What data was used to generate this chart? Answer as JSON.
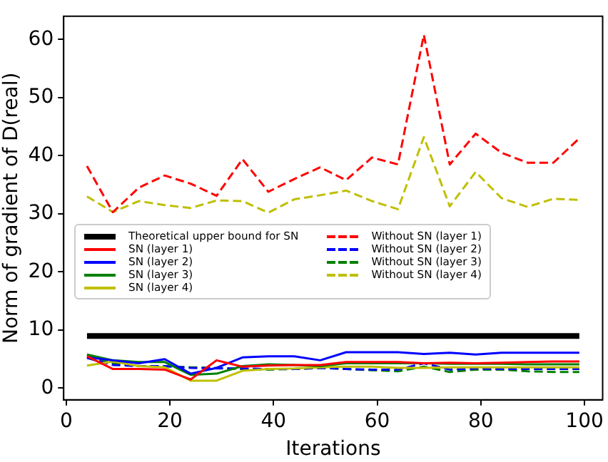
{
  "chart_data": {
    "type": "line",
    "xlabel": "Iterations",
    "ylabel": "Norm of gradient of D(real)",
    "x": [
      4,
      9,
      14,
      19,
      24,
      29,
      34,
      39,
      44,
      49,
      54,
      59,
      64,
      69,
      74,
      79,
      84,
      89,
      94,
      99
    ],
    "xlim": [
      -0.5,
      103.5
    ],
    "xticks": [
      0,
      20,
      40,
      60,
      80,
      100
    ],
    "ylim": [
      -2,
      64
    ],
    "yticks": [
      0,
      10,
      20,
      30,
      40,
      50,
      60
    ],
    "grid": false,
    "legend": "center left",
    "marker": "none",
    "series": [
      {
        "name": "Theoretical upper bound for SN",
        "color": "#000000",
        "line_style": "solid",
        "x": [
          4,
          99
        ],
        "values": [
          9,
          9
        ]
      },
      {
        "name": "SN (layer 1)",
        "color": "#ff0000",
        "line_style": "solid",
        "values": [
          5.5,
          3.3,
          3.3,
          3.2,
          1.5,
          4.8,
          3.7,
          3.9,
          4,
          4,
          4.5,
          4.5,
          4.5,
          4.3,
          4.4,
          4.3,
          4.4,
          4.5,
          4.6,
          4.6
        ]
      },
      {
        "name": "SN (layer 2)",
        "color": "#0000ff",
        "line_style": "solid",
        "values": [
          5.3,
          4.8,
          4.3,
          5,
          2.5,
          3.5,
          5.3,
          5.5,
          5.5,
          4.8,
          6.2,
          6.2,
          6.2,
          5.9,
          6.1,
          5.8,
          6.1,
          6.1,
          6.1,
          6.1
        ]
      },
      {
        "name": "SN (layer 3)",
        "color": "#008000",
        "line_style": "solid",
        "values": [
          5.8,
          4.8,
          4.5,
          4.5,
          2.3,
          2.5,
          3.8,
          4.1,
          4,
          3.8,
          4.3,
          4.3,
          4.3,
          4.3,
          4.2,
          4.2,
          4.2,
          4.1,
          4.1,
          4.1
        ]
      },
      {
        "name": "SN (layer 4)",
        "color": "#bfbf00",
        "line_style": "solid",
        "values": [
          3.9,
          4.6,
          3.8,
          3.6,
          1.3,
          1.3,
          3,
          3.3,
          3.4,
          3.6,
          3.7,
          3.7,
          3.5,
          3.5,
          3.6,
          3.6,
          3.6,
          3.6,
          3.6,
          3.6
        ]
      },
      {
        "name": "Without SN (layer 1)",
        "color": "#ff0000",
        "line_style": "dashed",
        "values": [
          38.2,
          30.3,
          34.5,
          36.6,
          35.2,
          33.1,
          39.4,
          33.8,
          36,
          38,
          35.8,
          39.7,
          38.5,
          60.8,
          38.5,
          43.8,
          40.5,
          38.8,
          38.8,
          43
        ]
      },
      {
        "name": "Without SN (layer 2)",
        "color": "#0000ff",
        "line_style": "dashed",
        "values": [
          5.2,
          4,
          3.8,
          3.8,
          3.5,
          3.4,
          3.4,
          3.3,
          3.3,
          3.5,
          3.3,
          3.2,
          3.2,
          4.3,
          3.2,
          3.4,
          3.3,
          3.3,
          3.3,
          3.3
        ]
      },
      {
        "name": "Without SN (layer 3)",
        "color": "#008000",
        "line_style": "dashed",
        "values": [
          5.5,
          4.3,
          3.8,
          3.8,
          3.6,
          3.5,
          3.3,
          3.2,
          3.3,
          3.5,
          3.3,
          3.1,
          2.9,
          3.7,
          2.8,
          3.2,
          3.2,
          2.9,
          2.8,
          2.8
        ]
      },
      {
        "name": "Without SN (layer 4)",
        "color": "#bfbf00",
        "line_style": "dashed",
        "values": [
          33,
          30.3,
          32.2,
          31.5,
          31,
          32.3,
          32.2,
          30.2,
          32.5,
          33.2,
          34,
          32.2,
          30.8,
          43.2,
          31.3,
          37.2,
          32.7,
          31.2,
          32.6,
          32.4
        ]
      }
    ]
  }
}
